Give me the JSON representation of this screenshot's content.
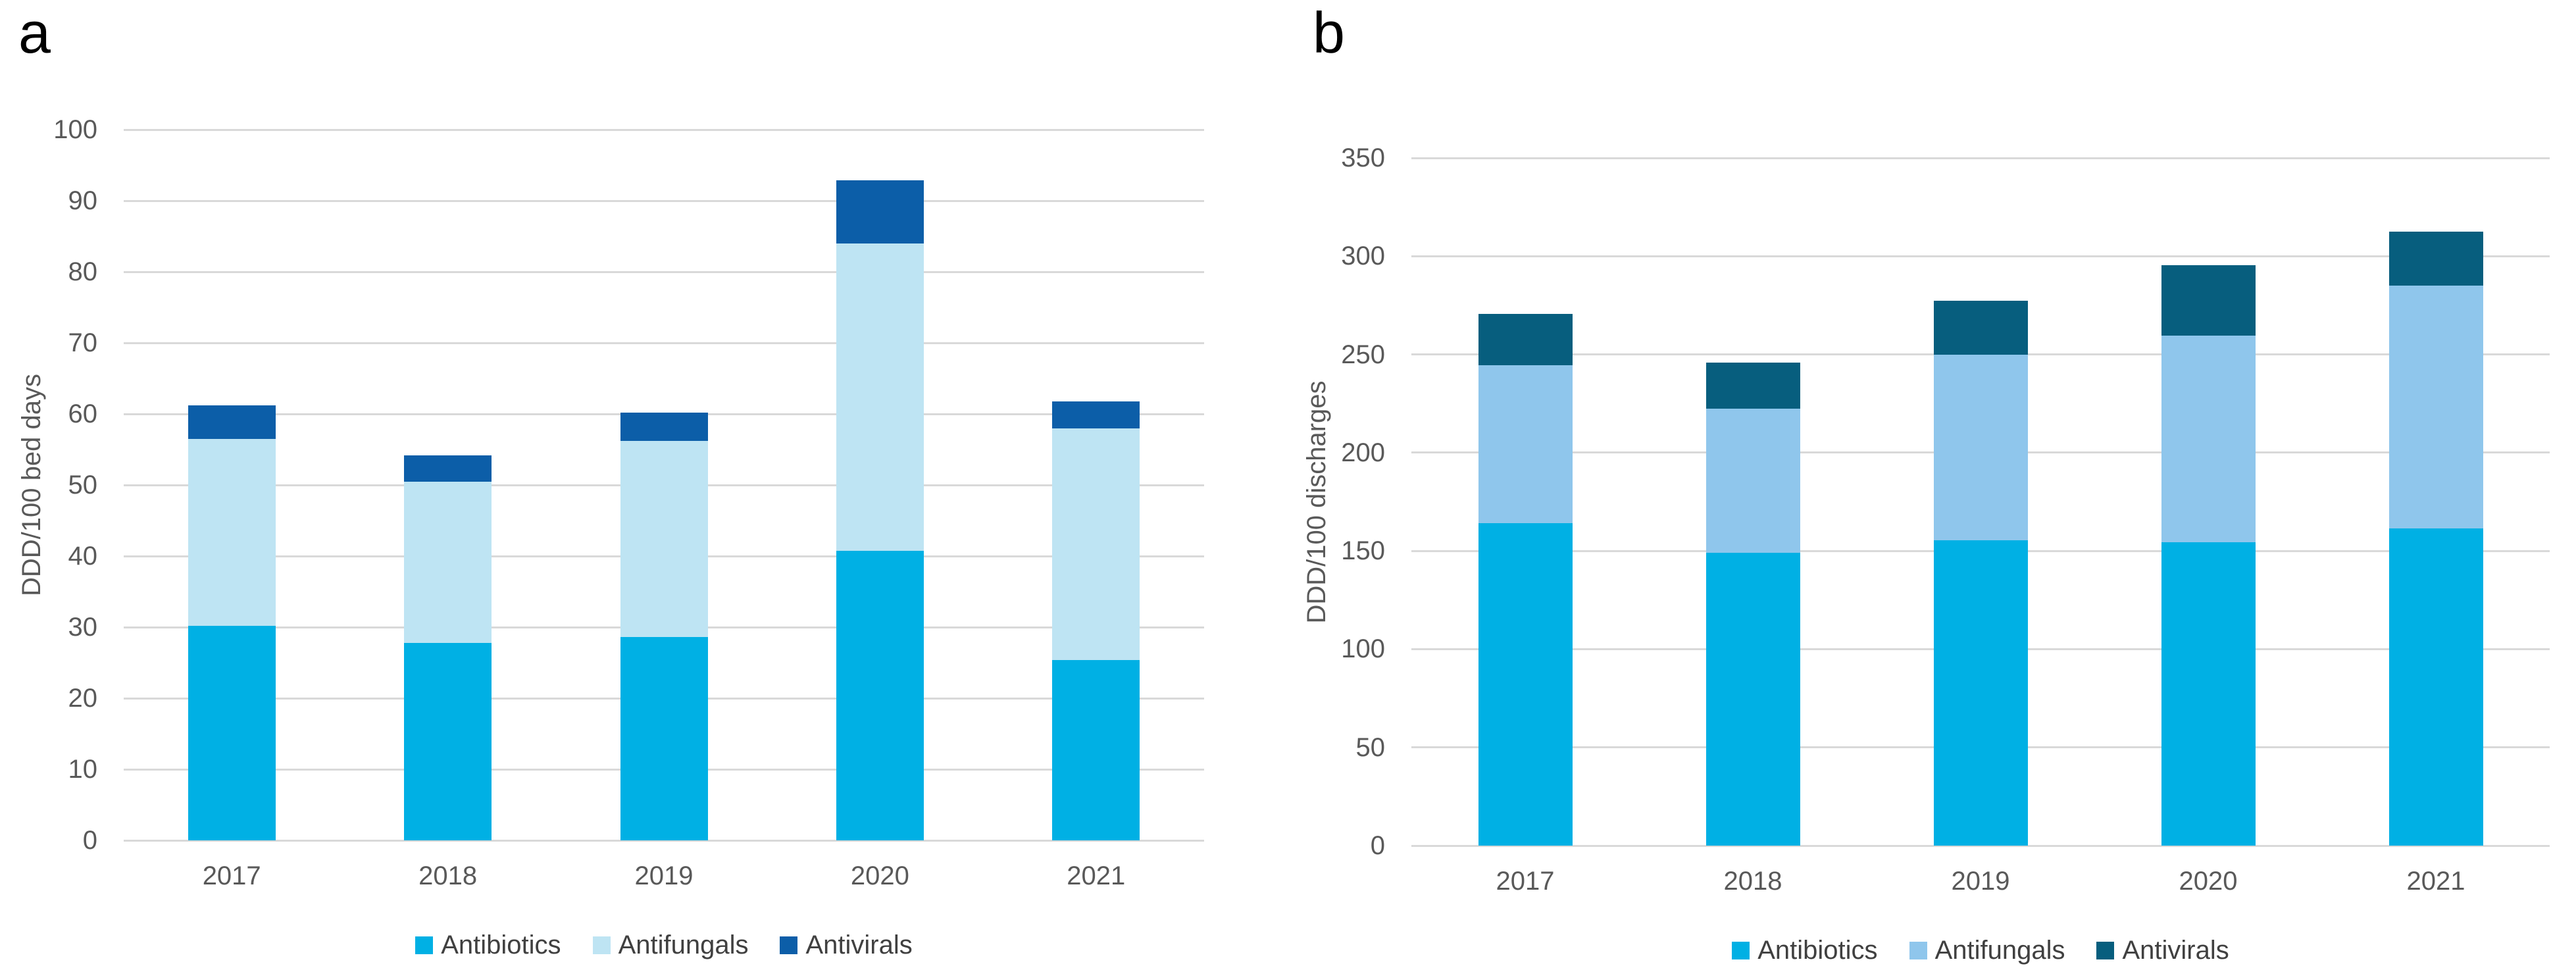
{
  "figure": {
    "panels": [
      {
        "label": "a",
        "y_title": "DDD/100 bed days"
      },
      {
        "label": "b",
        "y_title": "DDD/100 discharges"
      }
    ]
  },
  "colors": {
    "antibiotics": "#00B0E4",
    "antifungals_a": "#BEE4F3",
    "antivirals_a": "#0C5EA8",
    "antifungals_b": "#8FC6EC",
    "antivirals_b": "#075E7E",
    "gridline": "#D9D9D9",
    "axis_text": "#595959",
    "legend_text": "#404040"
  },
  "chart_data": [
    {
      "type": "bar",
      "stacked": true,
      "title": "",
      "xlabel": "",
      "ylabel": "DDD/100 bed days",
      "categories": [
        "2017",
        "2018",
        "2019",
        "2020",
        "2021"
      ],
      "series": [
        {
          "name": "Antibiotics",
          "color": "#00B0E4",
          "values": [
            30.2,
            27.8,
            28.6,
            40.7,
            25.4
          ]
        },
        {
          "name": "Antifungals",
          "color": "#BEE4F3",
          "values": [
            26.3,
            22.7,
            27.6,
            43.3,
            32.6
          ]
        },
        {
          "name": "Antivirals",
          "color": "#0C5EA8",
          "values": [
            4.7,
            3.7,
            4.0,
            8.9,
            3.8
          ]
        }
      ],
      "totals": [
        61.2,
        54.2,
        60.2,
        92.9,
        61.8
      ],
      "ylim": [
        0,
        100
      ],
      "yticks": [
        0,
        10,
        20,
        30,
        40,
        50,
        60,
        70,
        80,
        90,
        100
      ],
      "grid": "horizontal",
      "legend_position": "bottom",
      "legend": [
        "Antibiotics",
        "Antifungals",
        "Antivirals"
      ]
    },
    {
      "type": "bar",
      "stacked": true,
      "title": "",
      "xlabel": "",
      "ylabel": "DDD/100 discharges",
      "categories": [
        "2017",
        "2018",
        "2019",
        "2020",
        "2021"
      ],
      "series": [
        {
          "name": "Antibiotics",
          "color": "#00B0E4",
          "values": [
            164,
            149,
            155.5,
            154.5,
            161.5
          ]
        },
        {
          "name": "Antifungals",
          "color": "#8FC6EC",
          "values": [
            80.5,
            73.5,
            94.5,
            105,
            123.5
          ]
        },
        {
          "name": "Antivirals",
          "color": "#075E7E",
          "values": [
            26,
            23.5,
            27.5,
            36,
            27.5
          ]
        }
      ],
      "totals": [
        270.5,
        246,
        277.5,
        295.5,
        312.5
      ],
      "ylim": [
        0,
        350
      ],
      "yticks": [
        0,
        50,
        100,
        150,
        200,
        250,
        300,
        350
      ],
      "grid": "horizontal",
      "legend_position": "bottom",
      "legend": [
        "Antibiotics",
        "Antifungals",
        "Antivirals"
      ]
    }
  ]
}
